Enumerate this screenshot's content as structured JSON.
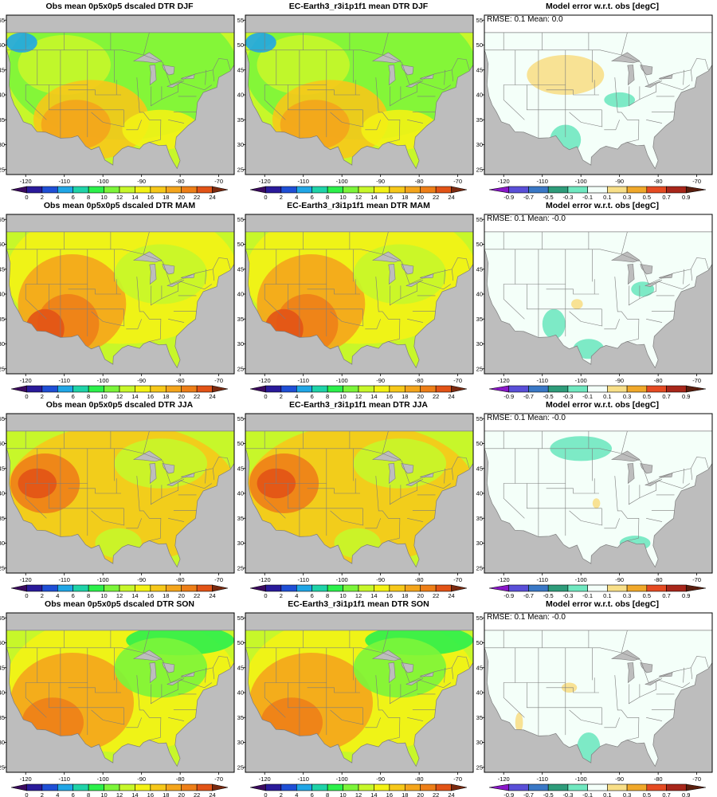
{
  "figure": {
    "seasons": [
      "DJF",
      "MAM",
      "JJA",
      "SON"
    ],
    "obs_title_prefix": "Obs mean 0p5x0p5 dscaled DTR",
    "model_title_prefix": "EC-Earth3_r3i1p1f1 mean DTR",
    "error_title": "Model error w.r.t. obs [degC]",
    "stats": [
      {
        "season": "DJF",
        "text": "RMSE: 0.1   Mean: 0.0"
      },
      {
        "season": "MAM",
        "text": "RMSE: 0.1   Mean: -0.0"
      },
      {
        "season": "JJA",
        "text": "RMSE: 0.1   Mean: -0.0"
      },
      {
        "season": "SON",
        "text": "RMSE: 0.1   Mean: -0.0"
      }
    ]
  },
  "axes": {
    "lon_range": [
      -125,
      -66
    ],
    "lat_range": [
      24,
      56
    ],
    "lon_ticks": [
      -120,
      -110,
      -100,
      -90,
      -80,
      -70
    ],
    "lat_ticks": [
      25,
      30,
      35,
      40,
      45,
      50,
      55
    ]
  },
  "colorbars": {
    "dtr": {
      "ticks": [
        "0",
        "2",
        "4",
        "6",
        "8",
        "10",
        "12",
        "14",
        "16",
        "18",
        "20",
        "22",
        "24"
      ],
      "colors": [
        "#3b0a5e",
        "#2a1a9a",
        "#1f4fd6",
        "#20a6e6",
        "#1fd3a8",
        "#2cf04b",
        "#7cf53a",
        "#c7f72a",
        "#f3f215",
        "#f6c81a",
        "#f4a51c",
        "#ee7f18",
        "#e25316",
        "#7a2a10"
      ]
    },
    "error": {
      "ticks": [
        "-0.9",
        "-0.7",
        "-0.5",
        "-0.3",
        "-0.1",
        "0.1",
        "0.3",
        "0.5",
        "0.7",
        "0.9"
      ],
      "colors": [
        "#8a17c9",
        "#5a4fd8",
        "#3a78c6",
        "#2e9c7a",
        "#70e8c0",
        "#f4fff9",
        "#f8df88",
        "#f0a82a",
        "#e54b22",
        "#a8261a",
        "#5a1e0e"
      ]
    }
  },
  "map_colors": {
    "land_gray": "#bdbdbd",
    "border": "#7d7d7d"
  }
}
